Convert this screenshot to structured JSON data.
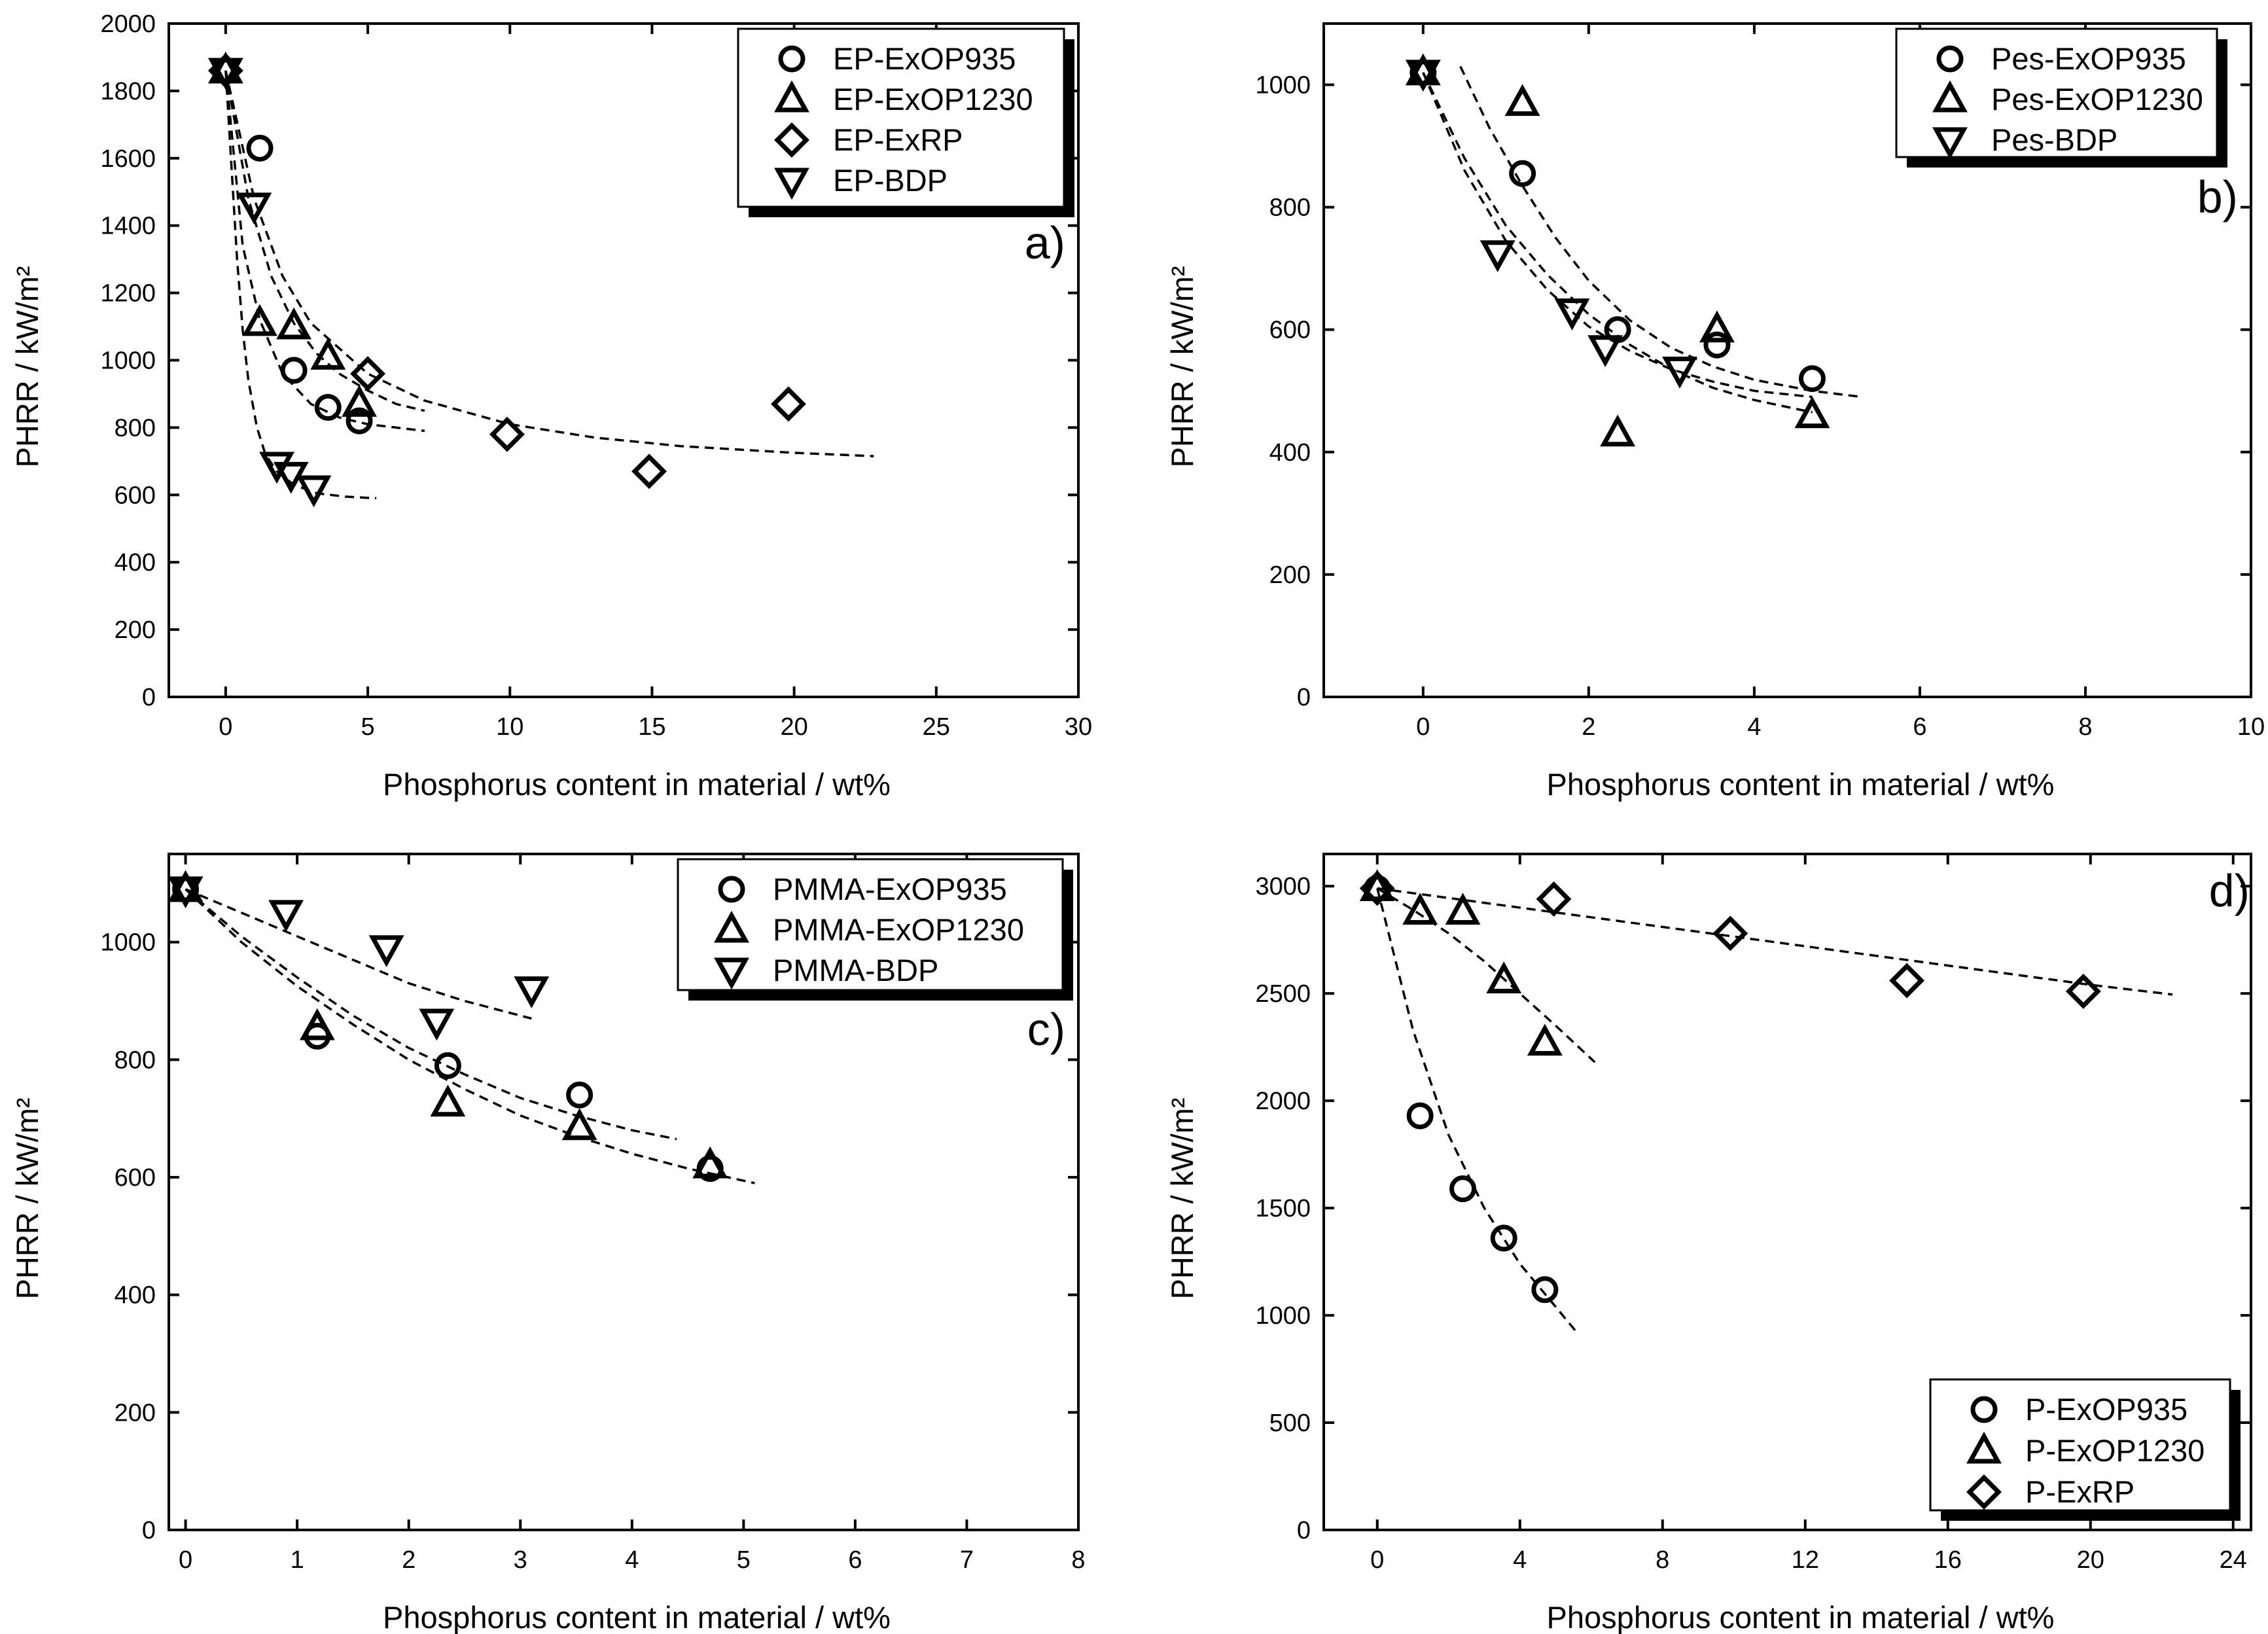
{
  "chart_data": [
    {
      "type": "scatter",
      "panel_label": "a)",
      "xlabel": "Phosphorus content in material  /  wt%",
      "ylabel": "PHRR  /  kW/m²",
      "xlim": [
        -2,
        30
      ],
      "ylim": [
        0,
        2000
      ],
      "xticks": [
        0,
        5,
        10,
        15,
        20,
        25,
        30
      ],
      "yticks": [
        0,
        200,
        400,
        600,
        800,
        1000,
        1200,
        1400,
        1600,
        1800,
        2000
      ],
      "legend_position": "top-right",
      "series": [
        {
          "name": "EP-ExOP935",
          "marker": "circle",
          "x": [
            0,
            1.2,
            2.4,
            3.6,
            4.7
          ],
          "y": [
            1860,
            1630,
            970,
            860,
            820
          ],
          "fit": {
            "x": [
              0,
              0.6,
              1.2,
              2,
              3,
              4,
              5,
              6,
              7
            ],
            "y": [
              1860,
              1340,
              1120,
              960,
              870,
              830,
              810,
              800,
              790
            ]
          }
        },
        {
          "name": "EP-ExOP1230",
          "marker": "triangle-up",
          "x": [
            0,
            1.2,
            2.4,
            3.6,
            4.7
          ],
          "y": [
            1860,
            1110,
            1100,
            1010,
            870
          ],
          "fit": {
            "x": [
              0,
              0.8,
              1.6,
              2.4,
              3.2,
              4,
              5,
              6,
              7
            ],
            "y": [
              1860,
              1480,
              1250,
              1110,
              1020,
              960,
              910,
              870,
              850
            ]
          }
        },
        {
          "name": "EP-ExRP",
          "marker": "diamond",
          "x": [
            0,
            5,
            9.9,
            14.9,
            19.8
          ],
          "y": [
            1860,
            960,
            780,
            670,
            870
          ],
          "fit": {
            "x": [
              0,
              1,
              2,
              3,
              5,
              7,
              10,
              13,
              16,
              20,
              22.8
            ],
            "y": [
              1860,
              1480,
              1250,
              1110,
              960,
              880,
              810,
              770,
              745,
              725,
              715
            ]
          }
        },
        {
          "name": "EP-BDP",
          "marker": "triangle-down",
          "x": [
            0,
            1,
            1.8,
            2.3,
            3.1
          ],
          "y": [
            1860,
            1460,
            690,
            660,
            620
          ],
          "fit": {
            "x": [
              0,
              0.2,
              0.4,
              0.6,
              0.8,
              1.1,
              1.4,
              1.8,
              2.4,
              3.2,
              4.2,
              5.3
            ],
            "y": [
              1860,
              1580,
              1300,
              1090,
              940,
              800,
              720,
              670,
              630,
              605,
              595,
              590
            ]
          }
        }
      ]
    },
    {
      "type": "scatter",
      "panel_label": "b)",
      "xlabel": "Phosphorus content in material  /  wt%",
      "ylabel": "PHRR  /  kW/m²",
      "xlim": [
        -1.2,
        10
      ],
      "ylim": [
        0,
        1100
      ],
      "xticks": [
        0,
        2,
        4,
        6,
        8,
        10
      ],
      "yticks": [
        0,
        200,
        400,
        600,
        800,
        1000
      ],
      "legend_position": "top-right",
      "series": [
        {
          "name": "Pes-ExOP935",
          "marker": "circle",
          "x": [
            0,
            1.2,
            2.35,
            3.55,
            4.7
          ],
          "y": [
            1020,
            855,
            600,
            575,
            520
          ],
          "fit": {
            "x": [
              0.45,
              0.8,
              1.2,
              1.6,
              2,
              2.5,
              3,
              3.5,
              4,
              4.7,
              5.3
            ],
            "y": [
              1030,
              930,
              835,
              750,
              680,
              615,
              570,
              540,
              518,
              500,
              490
            ]
          }
        },
        {
          "name": "Pes-ExOP1230",
          "marker": "triangle-up",
          "x": [
            0,
            1.2,
            2.35,
            3.55,
            4.7
          ],
          "y": [
            1020,
            970,
            430,
            600,
            460
          ],
          "fit": {
            "x": [
              0,
              0.5,
              1,
              1.5,
              2,
              2.5,
              3,
              3.5,
              4,
              4.7
            ],
            "y": [
              1020,
              880,
              770,
              690,
              625,
              575,
              535,
              505,
              485,
              465
            ]
          }
        },
        {
          "name": "Pes-BDP",
          "marker": "triangle-down",
          "x": [
            0,
            0.9,
            1.8,
            2.2,
            3.1
          ],
          "y": [
            1020,
            725,
            630,
            570,
            535
          ],
          "fit": {
            "x": [
              0,
              0.5,
              1,
              1.5,
              2,
              2.5,
              3,
              3.5,
              4,
              4.7
            ],
            "y": [
              1020,
              860,
              745,
              665,
              605,
              565,
              535,
              515,
              500,
              490
            ]
          }
        }
      ]
    },
    {
      "type": "scatter",
      "panel_label": "c)",
      "xlabel": "Phosphorus content in material  /  wt%",
      "ylabel": "PHRR  /  kW/m²",
      "xlim": [
        -0.15,
        8
      ],
      "ylim": [
        0,
        1150
      ],
      "xticks": [
        0,
        1,
        2,
        3,
        4,
        5,
        6,
        7,
        8
      ],
      "yticks": [
        0,
        200,
        400,
        600,
        800,
        1000
      ],
      "legend_position": "top-right",
      "series": [
        {
          "name": "PMMA-ExOP935",
          "marker": "circle",
          "x": [
            0,
            1.18,
            2.35,
            3.53,
            4.7
          ],
          "y": [
            1090,
            840,
            790,
            740,
            615
          ],
          "fit": {
            "x": [
              0,
              0.5,
              1,
              1.5,
              2,
              2.5,
              3,
              3.5,
              4,
              4.4
            ],
            "y": [
              1090,
              1010,
              940,
              875,
              820,
              775,
              735,
              705,
              680,
              665
            ]
          }
        },
        {
          "name": "PMMA-ExOP1230",
          "marker": "triangle-up",
          "x": [
            0,
            1.18,
            2.35,
            3.53,
            4.7
          ],
          "y": [
            1090,
            855,
            725,
            685,
            620
          ],
          "fit": {
            "x": [
              0,
              0.5,
              1,
              1.5,
              2,
              2.5,
              3,
              3.5,
              4,
              4.5,
              5.1
            ],
            "y": [
              1090,
              1000,
              925,
              860,
              800,
              750,
              705,
              670,
              640,
              615,
              590
            ]
          }
        },
        {
          "name": "PMMA-BDP",
          "marker": "triangle-down",
          "x": [
            0,
            0.9,
            1.8,
            2.25,
            3.1
          ],
          "y": [
            1090,
            1050,
            990,
            865,
            920
          ],
          "fit": {
            "x": [
              0,
              0.5,
              1,
              1.5,
              2,
              2.5,
              3.1
            ],
            "y": [
              1090,
              1050,
              1010,
              970,
              930,
              900,
              870
            ]
          }
        }
      ]
    },
    {
      "type": "scatter",
      "panel_label": "d)",
      "xlabel": "Phosphorus content in material  /  wt%",
      "ylabel": "PHRR  /  kW/m²",
      "xlim": [
        -1.5,
        24.5
      ],
      "ylim": [
        0,
        3150
      ],
      "xticks": [
        0,
        4,
        8,
        12,
        16,
        20,
        24
      ],
      "yticks": [
        0,
        500,
        1000,
        1500,
        2000,
        2500,
        3000
      ],
      "legend_position": "bottom-right",
      "series": [
        {
          "name": "P-ExOP935",
          "marker": "circle",
          "x": [
            0,
            1.2,
            2.4,
            3.55,
            4.7
          ],
          "y": [
            2990,
            1930,
            1590,
            1360,
            1120
          ],
          "fit": {
            "x": [
              0,
              1,
              2,
              3,
              4,
              5,
              5.6
            ],
            "y": [
              2990,
              2330,
              1840,
              1500,
              1240,
              1040,
              920
            ]
          }
        },
        {
          "name": "P-ExOP1230",
          "marker": "triangle-up",
          "x": [
            0,
            1.2,
            2.4,
            3.55,
            4.7
          ],
          "y": [
            2990,
            2880,
            2880,
            2560,
            2270
          ],
          "fit": {
            "x": [
              0,
              1,
              2,
              3,
              4,
              5,
              6.1
            ],
            "y": [
              2990,
              2890,
              2780,
              2650,
              2500,
              2350,
              2180
            ]
          }
        },
        {
          "name": "P-ExRP",
          "marker": "diamond",
          "x": [
            0,
            4.95,
            9.9,
            14.85,
            19.8
          ],
          "y": [
            2990,
            2940,
            2780,
            2560,
            2510
          ],
          "fit": {
            "x": [
              0,
              4,
              8,
              12,
              16,
              20,
              22.3
            ],
            "y": [
              2990,
              2900,
              2810,
              2720,
              2630,
              2540,
              2495
            ]
          }
        }
      ]
    }
  ]
}
